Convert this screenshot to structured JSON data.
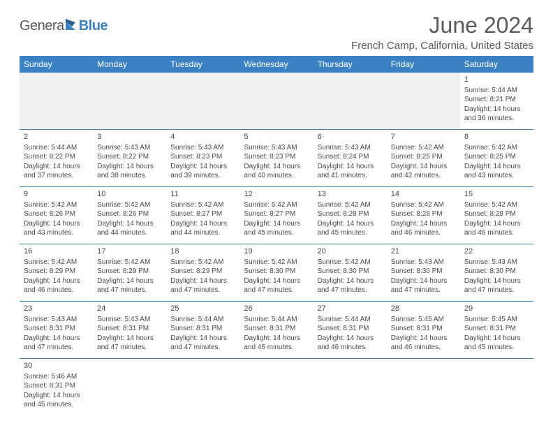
{
  "logo": {
    "text1": "Genera",
    "text2": "Blue"
  },
  "title": "June 2024",
  "location": "French Camp, California, United States",
  "colors": {
    "header_bg": "#3b82c4",
    "header_text": "#ffffff",
    "border": "#3b82c4",
    "text": "#4a4a4a",
    "empty_bg": "#f0f0f0"
  },
  "weekdays": [
    "Sunday",
    "Monday",
    "Tuesday",
    "Wednesday",
    "Thursday",
    "Friday",
    "Saturday"
  ],
  "weeks": [
    [
      null,
      null,
      null,
      null,
      null,
      null,
      {
        "n": "1",
        "sunrise": "Sunrise: 5:44 AM",
        "sunset": "Sunset: 8:21 PM",
        "daylight": "Daylight: 14 hours and 36 minutes."
      }
    ],
    [
      {
        "n": "2",
        "sunrise": "Sunrise: 5:44 AM",
        "sunset": "Sunset: 8:22 PM",
        "daylight": "Daylight: 14 hours and 37 minutes."
      },
      {
        "n": "3",
        "sunrise": "Sunrise: 5:43 AM",
        "sunset": "Sunset: 8:22 PM",
        "daylight": "Daylight: 14 hours and 38 minutes."
      },
      {
        "n": "4",
        "sunrise": "Sunrise: 5:43 AM",
        "sunset": "Sunset: 8:23 PM",
        "daylight": "Daylight: 14 hours and 39 minutes."
      },
      {
        "n": "5",
        "sunrise": "Sunrise: 5:43 AM",
        "sunset": "Sunset: 8:23 PM",
        "daylight": "Daylight: 14 hours and 40 minutes."
      },
      {
        "n": "6",
        "sunrise": "Sunrise: 5:43 AM",
        "sunset": "Sunset: 8:24 PM",
        "daylight": "Daylight: 14 hours and 41 minutes."
      },
      {
        "n": "7",
        "sunrise": "Sunrise: 5:42 AM",
        "sunset": "Sunset: 8:25 PM",
        "daylight": "Daylight: 14 hours and 42 minutes."
      },
      {
        "n": "8",
        "sunrise": "Sunrise: 5:42 AM",
        "sunset": "Sunset: 8:25 PM",
        "daylight": "Daylight: 14 hours and 43 minutes."
      }
    ],
    [
      {
        "n": "9",
        "sunrise": "Sunrise: 5:42 AM",
        "sunset": "Sunset: 8:26 PM",
        "daylight": "Daylight: 14 hours and 43 minutes."
      },
      {
        "n": "10",
        "sunrise": "Sunrise: 5:42 AM",
        "sunset": "Sunset: 8:26 PM",
        "daylight": "Daylight: 14 hours and 44 minutes."
      },
      {
        "n": "11",
        "sunrise": "Sunrise: 5:42 AM",
        "sunset": "Sunset: 8:27 PM",
        "daylight": "Daylight: 14 hours and 44 minutes."
      },
      {
        "n": "12",
        "sunrise": "Sunrise: 5:42 AM",
        "sunset": "Sunset: 8:27 PM",
        "daylight": "Daylight: 14 hours and 45 minutes."
      },
      {
        "n": "13",
        "sunrise": "Sunrise: 5:42 AM",
        "sunset": "Sunset: 8:28 PM",
        "daylight": "Daylight: 14 hours and 45 minutes."
      },
      {
        "n": "14",
        "sunrise": "Sunrise: 5:42 AM",
        "sunset": "Sunset: 8:28 PM",
        "daylight": "Daylight: 14 hours and 46 minutes."
      },
      {
        "n": "15",
        "sunrise": "Sunrise: 5:42 AM",
        "sunset": "Sunset: 8:28 PM",
        "daylight": "Daylight: 14 hours and 46 minutes."
      }
    ],
    [
      {
        "n": "16",
        "sunrise": "Sunrise: 5:42 AM",
        "sunset": "Sunset: 8:29 PM",
        "daylight": "Daylight: 14 hours and 46 minutes."
      },
      {
        "n": "17",
        "sunrise": "Sunrise: 5:42 AM",
        "sunset": "Sunset: 8:29 PM",
        "daylight": "Daylight: 14 hours and 47 minutes."
      },
      {
        "n": "18",
        "sunrise": "Sunrise: 5:42 AM",
        "sunset": "Sunset: 8:29 PM",
        "daylight": "Daylight: 14 hours and 47 minutes."
      },
      {
        "n": "19",
        "sunrise": "Sunrise: 5:42 AM",
        "sunset": "Sunset: 8:30 PM",
        "daylight": "Daylight: 14 hours and 47 minutes."
      },
      {
        "n": "20",
        "sunrise": "Sunrise: 5:42 AM",
        "sunset": "Sunset: 8:30 PM",
        "daylight": "Daylight: 14 hours and 47 minutes."
      },
      {
        "n": "21",
        "sunrise": "Sunrise: 5:43 AM",
        "sunset": "Sunset: 8:30 PM",
        "daylight": "Daylight: 14 hours and 47 minutes."
      },
      {
        "n": "22",
        "sunrise": "Sunrise: 5:43 AM",
        "sunset": "Sunset: 8:30 PM",
        "daylight": "Daylight: 14 hours and 47 minutes."
      }
    ],
    [
      {
        "n": "23",
        "sunrise": "Sunrise: 5:43 AM",
        "sunset": "Sunset: 8:31 PM",
        "daylight": "Daylight: 14 hours and 47 minutes."
      },
      {
        "n": "24",
        "sunrise": "Sunrise: 5:43 AM",
        "sunset": "Sunset: 8:31 PM",
        "daylight": "Daylight: 14 hours and 47 minutes."
      },
      {
        "n": "25",
        "sunrise": "Sunrise: 5:44 AM",
        "sunset": "Sunset: 8:31 PM",
        "daylight": "Daylight: 14 hours and 47 minutes."
      },
      {
        "n": "26",
        "sunrise": "Sunrise: 5:44 AM",
        "sunset": "Sunset: 8:31 PM",
        "daylight": "Daylight: 14 hours and 46 minutes."
      },
      {
        "n": "27",
        "sunrise": "Sunrise: 5:44 AM",
        "sunset": "Sunset: 8:31 PM",
        "daylight": "Daylight: 14 hours and 46 minutes."
      },
      {
        "n": "28",
        "sunrise": "Sunrise: 5:45 AM",
        "sunset": "Sunset: 8:31 PM",
        "daylight": "Daylight: 14 hours and 46 minutes."
      },
      {
        "n": "29",
        "sunrise": "Sunrise: 5:45 AM",
        "sunset": "Sunset: 8:31 PM",
        "daylight": "Daylight: 14 hours and 45 minutes."
      }
    ],
    [
      {
        "n": "30",
        "sunrise": "Sunrise: 5:46 AM",
        "sunset": "Sunset: 8:31 PM",
        "daylight": "Daylight: 14 hours and 45 minutes."
      },
      null,
      null,
      null,
      null,
      null,
      null
    ]
  ]
}
